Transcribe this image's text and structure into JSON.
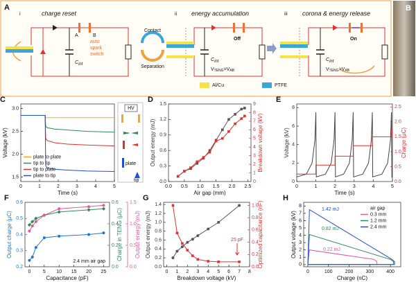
{
  "panel_a": {
    "label": "A",
    "steps": [
      {
        "numeral": "i",
        "title": "charge reset"
      },
      {
        "numeral": "ii",
        "title": "energy accumulation"
      },
      {
        "numeral": "iii",
        "title": "corona & energy release"
      }
    ],
    "switch_terminals": [
      "A",
      "B"
    ],
    "switch_label": [
      "auto",
      "spark",
      "switch"
    ],
    "capacitors": [
      {
        "base": "C",
        "sub": "int"
      },
      {
        "base": "C",
        "sub": "int"
      },
      {
        "base": "C",
        "sub": "int"
      }
    ],
    "voltage_relations": [
      [
        "V",
        "TENG",
        "=V",
        "AB"
      ],
      [
        "V",
        "TENG",
        ">V",
        "AB"
      ]
    ],
    "switch_states": [
      "Off",
      "On"
    ],
    "cycle": [
      "Contact",
      "Separation"
    ],
    "legend": [
      {
        "name": "Al/Cu",
        "color": "#f5e342"
      },
      {
        "name": "PTFE",
        "color": "#3aa6dd"
      }
    ]
  },
  "panel_b": {
    "label": "B"
  },
  "chart_data": [
    {
      "panel": "C",
      "type": "line",
      "xlabel": "Time (s)",
      "ylabel": "Voltage (kV)",
      "xlim": [
        0,
        5
      ],
      "xticks": [
        0,
        1,
        2,
        3,
        4,
        5
      ],
      "ylim": [
        1.4,
        3.1
      ],
      "yticks": [
        1.5,
        {
          "value": 2,
          "label": "2.0"
        },
        2.5,
        {
          "value": 3,
          "label": "3.0"
        }
      ],
      "legend": "lower left",
      "x": [
        0,
        1.3,
        1.33,
        1.4,
        1.8,
        2.5,
        3.5,
        5
      ],
      "series": [
        {
          "name": "plate to plate",
          "color": "#f5a623",
          "values": [
            2.85,
            2.85,
            2.8,
            2.8,
            2.8,
            2.8,
            2.8,
            2.8
          ]
        },
        {
          "name": "tip to tip",
          "color": "#2e8b57",
          "values": [
            2.85,
            2.85,
            2.62,
            2.58,
            2.55,
            2.53,
            2.5,
            2.48
          ]
        },
        {
          "name": "tip to plate",
          "color": "#e03030",
          "values": [
            2.85,
            2.85,
            2.35,
            2.3,
            2.25,
            2.22,
            2.2,
            2.18
          ]
        },
        {
          "name": "plate to tip",
          "color": "#1f4fd0",
          "values": [
            2.85,
            2.85,
            1.75,
            1.7,
            1.67,
            1.65,
            1.63,
            1.62
          ]
        }
      ],
      "inset": [
        "HV",
        "plate",
        "tip"
      ]
    },
    {
      "panel": "D",
      "type": "line",
      "xlabel": "Air gap (mm)",
      "ylabel": "Output energy (mJ)",
      "y2label": "Breakdown voltage (kV)",
      "xlim": [
        0,
        2.6
      ],
      "xticks": [
        {
          "value": 0,
          "label": "0.0"
        },
        0.5,
        {
          "value": 1,
          "label": "1.0"
        },
        1.5,
        {
          "value": 2,
          "label": "2.0"
        },
        2.5
      ],
      "ylim": [
        0,
        1.5
      ],
      "yticks": [
        {
          "value": 0,
          "label": "0.0"
        },
        0.3,
        0.6,
        0.9,
        1.2,
        1.5
      ],
      "y2lim": [
        0,
        9
      ],
      "y2ticks": [
        0,
        1,
        2,
        3,
        4,
        5,
        6,
        7,
        8,
        9
      ],
      "ycolor": "#333333",
      "y2color": "#e03030",
      "x": [
        0.3,
        0.5,
        0.7,
        0.9,
        1.1,
        1.3,
        1.5,
        1.7,
        1.9,
        2.1,
        2.3,
        2.4
      ],
      "series": [
        {
          "color": "#555555",
          "marker": "square",
          "values": [
            0.1,
            0.2,
            0.25,
            0.35,
            0.45,
            0.6,
            0.8,
            1.0,
            1.2,
            1.3,
            1.4,
            1.42
          ]
        },
        {
          "color": "#e03030",
          "marker": "square",
          "axis": "y2",
          "values": [
            0.6,
            1.2,
            1.6,
            2.3,
            2.8,
            3.4,
            4.7,
            5.0,
            5.8,
            6.7,
            7.3,
            7.6
          ]
        }
      ]
    },
    {
      "panel": "E",
      "type": "line",
      "xlabel": "Time (s)",
      "ylabel": "Voltage (kV)",
      "y2label": "Charge (μC)",
      "xlim": [
        0,
        5
      ],
      "xticks": [
        0,
        1,
        2,
        3,
        4,
        5
      ],
      "ylim": [
        0,
        8.4
      ],
      "yticks": [
        0,
        2,
        4,
        6,
        8
      ],
      "y2lim": [
        0,
        2.6
      ],
      "y2ticks": [
        {
          "value": 0,
          "label": "0.0"
        },
        0.5,
        {
          "value": 1,
          "label": "1.0"
        },
        1.5,
        {
          "value": 2,
          "label": "2.0"
        },
        2.5
      ],
      "ycolor": "#333333",
      "y2color": "#e03030",
      "series": [
        {
          "color": "#444444",
          "x": [
            0,
            0.5,
            0.8,
            0.95,
            1.0,
            1.02,
            1.5,
            1.8,
            1.95,
            2.0,
            2.02,
            2.45,
            2.75,
            2.9,
            2.95,
            2.97,
            3.45,
            3.75,
            3.9,
            3.95,
            3.97,
            4.45,
            4.75,
            4.9,
            4.95,
            4.97,
            5
          ],
          "values": [
            0.5,
            0.8,
            2.0,
            4.5,
            7.5,
            0.5,
            0.8,
            2.0,
            4.5,
            7.5,
            0.5,
            0.8,
            2.0,
            4.5,
            7.5,
            0.5,
            0.8,
            2.0,
            4.5,
            7.5,
            0.5,
            0.8,
            2.0,
            4.5,
            7.5,
            0.5,
            0.6
          ]
        },
        {
          "color": "#e03030",
          "axis": "y2",
          "x": [
            0,
            1.0,
            1.0,
            2.0,
            2.0,
            2.95,
            2.95,
            3.95,
            3.95,
            4.95,
            4.95,
            5
          ],
          "values": [
            0.25,
            0.25,
            0.55,
            0.55,
            0.85,
            0.85,
            1.2,
            1.2,
            1.5,
            1.5,
            1.75,
            1.75
          ]
        }
      ]
    },
    {
      "panel": "F",
      "type": "line",
      "xlabel": "Capacitance (pF)",
      "ylabel": "Output charge (μC)",
      "y2label": "Charge in TENG (μC)",
      "y3label": "Output energy (mJ)",
      "xlim": [
        -1.5,
        27
      ],
      "xticks": [
        0,
        5,
        10,
        15,
        20,
        25
      ],
      "ylim": [
        0.2,
        0.6
      ],
      "yticks": [
        0.2,
        0.3,
        0.4,
        0.5,
        0.6
      ],
      "y2lim": [
        0,
        0.6
      ],
      "y2ticks": [
        {
          "value": 0,
          "label": "0.0"
        },
        0.2,
        0.4,
        0.6
      ],
      "y3lim": [
        0,
        1.5
      ],
      "y3ticks": [
        {
          "value": 0,
          "label": "0.0"
        },
        0.5,
        {
          "value": 1,
          "label": "1.0"
        },
        1.5
      ],
      "ycolor": "#1f77d0",
      "y2color": "#2e8b57",
      "y3color": "#e8559a",
      "x": [
        0,
        1,
        2.2,
        5,
        10,
        20,
        25
      ],
      "series": [
        {
          "color": "#1f77d0",
          "marker": "circle",
          "values": [
            0.24,
            0.26,
            0.32,
            0.38,
            0.39,
            0.4,
            0.41
          ]
        },
        {
          "color": "#2e8b57",
          "marker": "diamond",
          "axis": "y2",
          "values": [
            0.39,
            0.42,
            0.45,
            0.48,
            0.51,
            0.53,
            0.54
          ]
        },
        {
          "color": "#e8559a",
          "marker": "circle",
          "axis": "y3",
          "values": [
            0.83,
            0.95,
            1.05,
            1.2,
            1.35,
            1.4,
            1.43
          ]
        }
      ],
      "annotations": [
        {
          "text": "2.4 mm air gap",
          "color": "#111111"
        }
      ]
    },
    {
      "panel": "G",
      "type": "line",
      "xlabel": "Breakdown voltage (kV)",
      "ylabel": "Output energy (mJ)",
      "y2label": "Optimized capacitance (nF)",
      "xlim": [
        -0.3,
        8
      ],
      "xticks": [
        0,
        1,
        2,
        3,
        4,
        5,
        6,
        7,
        8
      ],
      "ylim": [
        0,
        1.45
      ],
      "yticks": [
        {
          "value": 0,
          "label": "0.0"
        },
        0.2,
        0.4,
        0.6,
        0.8,
        {
          "value": 1,
          "label": "1.0"
        },
        1.2,
        1.4
      ],
      "y2lim": [
        0,
        1.05
      ],
      "y2ticks": [
        {
          "value": 0,
          "label": "0.0"
        },
        0.2,
        0.4,
        0.6,
        0.8,
        {
          "value": 1,
          "label": "1.0"
        }
      ],
      "ycolor": "#333333",
      "y2color": "#e03030",
      "x": [
        0.6,
        1,
        1.5,
        2,
        2.5,
        3,
        4,
        5,
        7
      ],
      "series": [
        {
          "color": "#555555",
          "marker": "circle",
          "values": [
            0.2,
            0.35,
            0.45,
            0.55,
            0.62,
            0.7,
            0.85,
            1.0,
            1.38
          ]
        },
        {
          "color": "#e03030",
          "marker": "square",
          "axis": "y2",
          "values": [
            1.0,
            0.55,
            0.38,
            0.27,
            0.18,
            0.12,
            0.09,
            0.08,
            0.08
          ]
        }
      ],
      "annotations": [
        {
          "text": "25 pF",
          "color": "#e03030"
        }
      ]
    },
    {
      "panel": "H",
      "type": "line",
      "xlabel": "Charge (nC)",
      "ylabel": "Output voltage (kV)",
      "xlim": [
        -20,
        450
      ],
      "xticks": [
        0,
        100,
        200,
        300,
        400
      ],
      "ylim": [
        -0.3,
        8.5
      ],
      "yticks": [
        0,
        1,
        2,
        3,
        4,
        5,
        6,
        7,
        8
      ],
      "legend": "upper right",
      "legend_title": "air gap",
      "series": [
        {
          "name": "0.3 mm",
          "color": "#e8559a",
          "x": [
            0,
            8,
            320,
            335,
            335,
            0
          ],
          "values": [
            0,
            2.0,
            0.7,
            0.4,
            0,
            0
          ]
        },
        {
          "name": "1.2 mm",
          "color": "#2e8b57",
          "x": [
            0,
            8,
            400,
            415,
            415,
            0
          ],
          "values": [
            0,
            4.1,
            0.7,
            0.4,
            0,
            0
          ]
        },
        {
          "name": "2.4 mm",
          "color": "#1f4fd0",
          "x": [
            0,
            8,
            405,
            420,
            420,
            0
          ],
          "values": [
            0,
            7.5,
            0.75,
            0.4,
            0,
            0
          ]
        }
      ],
      "annotations": [
        {
          "text": "1.42 mJ",
          "color": "#1f4fd0"
        },
        {
          "text": "0.82 mJ",
          "color": "#2e8b57"
        },
        {
          "text": "0.22 mJ",
          "color": "#e8559a"
        }
      ]
    }
  ]
}
